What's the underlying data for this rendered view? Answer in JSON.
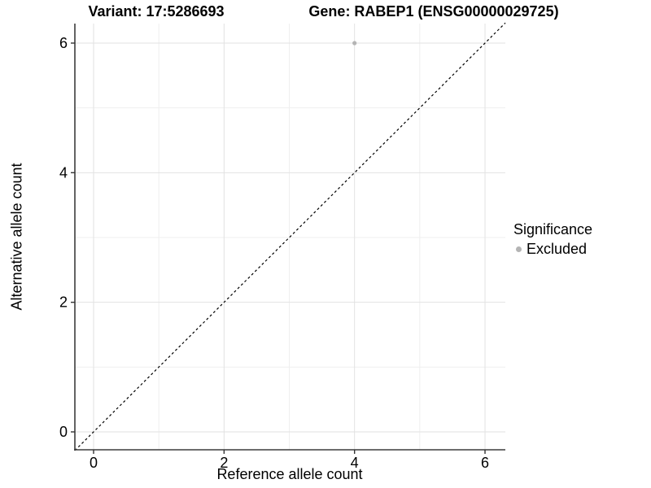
{
  "chart_data": {
    "type": "scatter",
    "title_variant": "Variant: 17:5286693",
    "title_gene": "Gene: RABEP1 (ENSG00000029725)",
    "xlabel": "Reference allele count",
    "ylabel": "Alternative allele count",
    "xlim": [
      -0.29,
      6.31
    ],
    "ylim": [
      -0.28,
      6.3
    ],
    "x_ticks": [
      0,
      2,
      4,
      6
    ],
    "y_ticks": [
      0,
      2,
      4,
      6
    ],
    "x_minor_ticks": [
      1,
      3,
      5
    ],
    "y_minor_ticks": [
      1,
      3,
      5
    ],
    "grid": {
      "major": true,
      "minor": true
    },
    "series": [
      {
        "name": "Excluded",
        "color": "#b4b4b4",
        "points": [
          {
            "x": 4,
            "y": 6
          }
        ]
      }
    ],
    "reference_line": {
      "style": "dashed",
      "slope": 1,
      "intercept": 0,
      "color": "#000000"
    },
    "legend": {
      "title": "Significance",
      "position": "right",
      "entries": [
        {
          "label": "Excluded",
          "color": "#b4b4b4"
        }
      ]
    },
    "colors": {
      "background": "#ffffff",
      "grid_major": "#e2e2e2",
      "grid_minor": "#efefef",
      "axis_line": "#3c3c3c",
      "tick": "#333333",
      "text": "#000000"
    }
  }
}
